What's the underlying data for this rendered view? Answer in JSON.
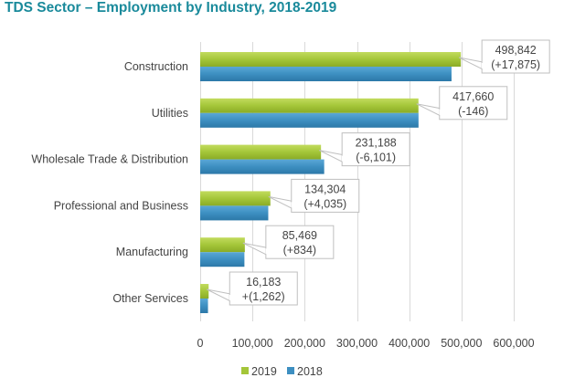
{
  "chart_data": {
    "type": "bar",
    "orientation": "horizontal",
    "title": "TDS Sector – Employment by Industry, 2018-2019",
    "categories": [
      "Construction",
      "Utilities",
      "Wholesale Trade & Distribution",
      "Professional and Business",
      "Manufacturing",
      "Other Services"
    ],
    "series": [
      {
        "name": "2019",
        "color": "#a4c639",
        "values": [
          498842,
          417660,
          231188,
          134304,
          85469,
          16183
        ]
      },
      {
        "name": "2018",
        "color": "#3d8fc1",
        "values": [
          480967,
          417806,
          237289,
          130269,
          84635,
          14921
        ]
      }
    ],
    "annotations": [
      {
        "value": "498,842",
        "change": "(+17,875)"
      },
      {
        "value": "417,660",
        "change": "(-146)"
      },
      {
        "value": "231,188",
        "change": "(-6,101)"
      },
      {
        "value": "134,304",
        "change": "(+4,035)"
      },
      {
        "value": "85,469",
        "change": "(+834)"
      },
      {
        "value": "16,183",
        "change": "+(1,262)"
      }
    ],
    "xlim": [
      0,
      600000
    ],
    "xticks": [
      0,
      100000,
      200000,
      300000,
      400000,
      500000,
      600000
    ],
    "xtick_labels": [
      "0",
      "100,000",
      "200,000",
      "300,000",
      "400,000",
      "500,000",
      "600,000"
    ],
    "xlabel": "",
    "ylabel": "",
    "grid": true,
    "legend": "bottom"
  }
}
